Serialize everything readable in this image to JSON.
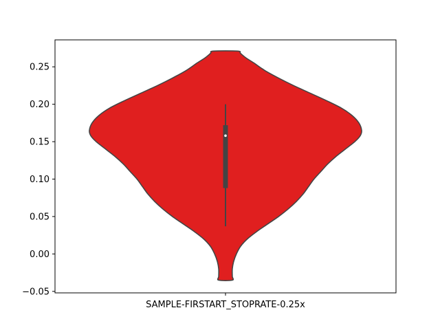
{
  "chart_data": {
    "type": "violin",
    "categories": [
      "SAMPLE-FIRSTART_STOPRATE-0.25x"
    ],
    "ylim": [
      -0.052,
      0.286
    ],
    "yticks": [
      -0.05,
      0.0,
      0.05,
      0.1,
      0.15,
      0.2,
      0.25
    ],
    "ytick_labels": [
      "−0.05",
      "0.00",
      "0.05",
      "0.10",
      "0.15",
      "0.20",
      "0.25"
    ],
    "grid": false,
    "colors": {
      "fill": "#e01f1f",
      "outline": "#444444",
      "box": "#444444",
      "median": "#ffffff"
    },
    "violin": {
      "min": -0.035,
      "max": 0.271,
      "density_profile": [
        [
          0.271,
          0.09
        ],
        [
          0.268,
          0.11
        ],
        [
          0.262,
          0.15
        ],
        [
          0.255,
          0.21
        ],
        [
          0.245,
          0.29
        ],
        [
          0.235,
          0.39
        ],
        [
          0.225,
          0.5
        ],
        [
          0.215,
          0.62
        ],
        [
          0.205,
          0.74
        ],
        [
          0.195,
          0.85
        ],
        [
          0.185,
          0.93
        ],
        [
          0.175,
          0.98
        ],
        [
          0.165,
          1.0
        ],
        [
          0.158,
          0.99
        ],
        [
          0.15,
          0.95
        ],
        [
          0.14,
          0.88
        ],
        [
          0.13,
          0.81
        ],
        [
          0.12,
          0.75
        ],
        [
          0.11,
          0.7
        ],
        [
          0.1,
          0.65
        ],
        [
          0.09,
          0.61
        ],
        [
          0.08,
          0.57
        ],
        [
          0.07,
          0.52
        ],
        [
          0.06,
          0.46
        ],
        [
          0.05,
          0.39
        ],
        [
          0.04,
          0.31
        ],
        [
          0.03,
          0.23
        ],
        [
          0.02,
          0.16
        ],
        [
          0.01,
          0.11
        ],
        [
          0.0,
          0.08
        ],
        [
          -0.01,
          0.06
        ],
        [
          -0.02,
          0.05
        ],
        [
          -0.03,
          0.05
        ],
        [
          -0.035,
          0.05
        ]
      ],
      "box": {
        "whisker_low": 0.037,
        "q1": 0.088,
        "median": 0.158,
        "q3": 0.172,
        "whisker_high": 0.2
      }
    }
  }
}
